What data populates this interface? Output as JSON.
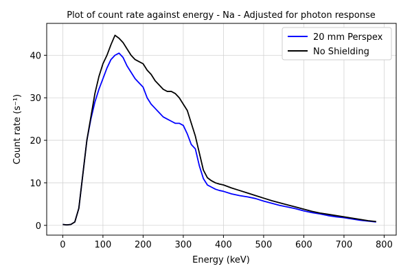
{
  "chart_data": {
    "type": "line",
    "title": "Plot of count rate against energy - Na - Adjusted for photon response",
    "xlabel": "Energy (keV)",
    "ylabel": "Count rate (s⁻¹)",
    "xlim": [
      -40,
      830
    ],
    "ylim": [
      -2.3,
      47.5
    ],
    "xticks": [
      0,
      100,
      200,
      300,
      400,
      500,
      600,
      700,
      800
    ],
    "yticks": [
      0,
      10,
      20,
      30,
      40
    ],
    "grid": true,
    "legend_position": "top-right",
    "series": [
      {
        "name": "20 mm Perspex",
        "color": "#0000ff",
        "x": [
          0,
          10,
          20,
          30,
          40,
          50,
          60,
          70,
          80,
          90,
          100,
          110,
          120,
          130,
          140,
          150,
          160,
          170,
          180,
          190,
          200,
          210,
          220,
          230,
          240,
          250,
          260,
          270,
          280,
          290,
          300,
          310,
          320,
          330,
          340,
          350,
          360,
          370,
          380,
          390,
          400,
          420,
          440,
          460,
          480,
          500,
          520,
          540,
          560,
          580,
          600,
          620,
          640,
          660,
          680,
          700,
          720,
          740,
          760,
          780
        ],
        "y": [
          0.2,
          0.1,
          0.2,
          0.8,
          4,
          12,
          20,
          25,
          29,
          32,
          34.5,
          37,
          39,
          40,
          40.5,
          39.5,
          37.5,
          36,
          34.5,
          33.5,
          32.5,
          30,
          28.5,
          27.5,
          26.5,
          25.5,
          25,
          24.5,
          24,
          24,
          23.5,
          21.5,
          19,
          18,
          14,
          11,
          9.5,
          9,
          8.5,
          8.2,
          8,
          7.4,
          7,
          6.7,
          6.3,
          5.7,
          5.2,
          4.7,
          4.3,
          3.9,
          3.4,
          3,
          2.7,
          2.3,
          2,
          1.8,
          1.5,
          1.2,
          1,
          0.8
        ]
      },
      {
        "name": "No Shielding",
        "color": "#000000",
        "x": [
          0,
          10,
          20,
          30,
          40,
          50,
          60,
          70,
          80,
          90,
          100,
          110,
          120,
          130,
          140,
          150,
          160,
          170,
          180,
          190,
          200,
          210,
          220,
          230,
          240,
          250,
          260,
          270,
          280,
          290,
          300,
          310,
          320,
          330,
          340,
          350,
          360,
          370,
          380,
          390,
          400,
          420,
          440,
          460,
          480,
          500,
          520,
          540,
          560,
          580,
          600,
          620,
          640,
          660,
          680,
          700,
          720,
          740,
          760,
          780
        ],
        "y": [
          0.2,
          0.1,
          0.2,
          0.8,
          4,
          12,
          20,
          25.5,
          31,
          35,
          38,
          40,
          42.5,
          44.7,
          44,
          43,
          41.5,
          40,
          39,
          38.5,
          38,
          36.5,
          35.5,
          34,
          33,
          32,
          31.5,
          31.5,
          31,
          30,
          28.5,
          27,
          24,
          21,
          17,
          13,
          11.2,
          10.5,
          10,
          9.7,
          9.5,
          8.8,
          8.2,
          7.6,
          7,
          6.4,
          5.8,
          5.3,
          4.8,
          4.3,
          3.8,
          3.3,
          2.9,
          2.6,
          2.3,
          2,
          1.7,
          1.4,
          1.1,
          0.9
        ]
      }
    ]
  }
}
